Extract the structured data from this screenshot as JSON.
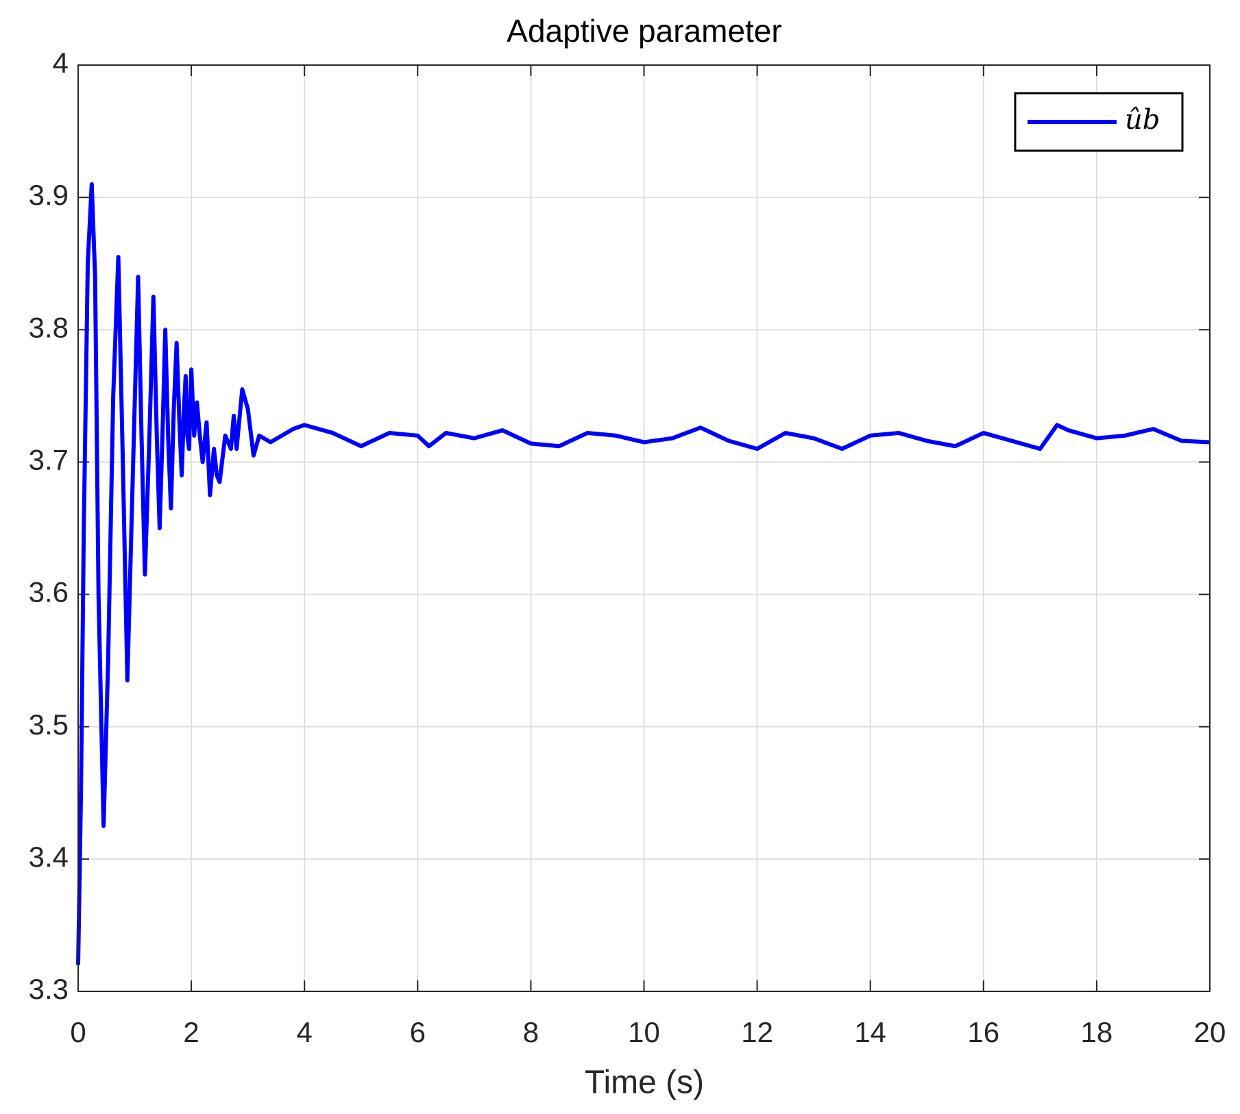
{
  "chart_data": {
    "type": "line",
    "title": "Adaptive parameter",
    "x_label": "Time (s)",
    "x": [
      0,
      0.05,
      0.1,
      0.17,
      0.24,
      0.3,
      0.36,
      0.45,
      0.53,
      0.62,
      0.71,
      0.79,
      0.87,
      0.96,
      1.06,
      1.12,
      1.18,
      1.26,
      1.33,
      1.39,
      1.44,
      1.49,
      1.54,
      1.59,
      1.64,
      1.69,
      1.74,
      1.79,
      1.83,
      1.87,
      1.9,
      1.93,
      1.96,
      2.0,
      2.05,
      2.1,
      2.15,
      2.2,
      2.27,
      2.33,
      2.4,
      2.45,
      2.5,
      2.6,
      2.7,
      2.75,
      2.8,
      2.9,
      3.0,
      3.1,
      3.2,
      3.4,
      3.6,
      3.8,
      4.0,
      4.5,
      5.0,
      5.5,
      6.0,
      6.2,
      6.5,
      7.0,
      7.5,
      8.0,
      8.5,
      9.0,
      9.5,
      10.0,
      10.5,
      11.0,
      11.5,
      12.0,
      12.5,
      13.0,
      13.5,
      14.0,
      14.5,
      15.0,
      15.5,
      16.0,
      16.5,
      17.0,
      17.3,
      17.5,
      18.0,
      18.5,
      19.0,
      19.5,
      20.0
    ],
    "series": [
      {
        "name": "ûb",
        "color": "#0000ff",
        "values": [
          3.32,
          3.45,
          3.65,
          3.85,
          3.91,
          3.84,
          3.6,
          3.425,
          3.55,
          3.75,
          3.855,
          3.7,
          3.535,
          3.68,
          3.84,
          3.72,
          3.615,
          3.72,
          3.825,
          3.72,
          3.65,
          3.72,
          3.8,
          3.72,
          3.665,
          3.74,
          3.79,
          3.73,
          3.69,
          3.74,
          3.765,
          3.72,
          3.71,
          3.77,
          3.72,
          3.745,
          3.72,
          3.7,
          3.73,
          3.675,
          3.71,
          3.69,
          3.685,
          3.72,
          3.71,
          3.735,
          3.71,
          3.755,
          3.74,
          3.705,
          3.72,
          3.715,
          3.72,
          3.725,
          3.728,
          3.722,
          3.712,
          3.722,
          3.72,
          3.712,
          3.722,
          3.718,
          3.724,
          3.714,
          3.712,
          3.722,
          3.72,
          3.715,
          3.718,
          3.726,
          3.716,
          3.71,
          3.722,
          3.718,
          3.71,
          3.72,
          3.722,
          3.716,
          3.712,
          3.722,
          3.716,
          3.71,
          3.728,
          3.724,
          3.718,
          3.72,
          3.725,
          3.716,
          3.715
        ]
      }
    ],
    "xlim": [
      0,
      20
    ],
    "xticks": [
      0,
      2,
      4,
      6,
      8,
      10,
      12,
      14,
      16,
      18,
      20
    ],
    "ylim": [
      3.3,
      4
    ],
    "yticks": [
      3.3,
      3.4,
      3.5,
      3.6,
      3.7,
      3.8,
      3.9,
      4
    ],
    "grid": true,
    "legend_position": "upper right"
  }
}
